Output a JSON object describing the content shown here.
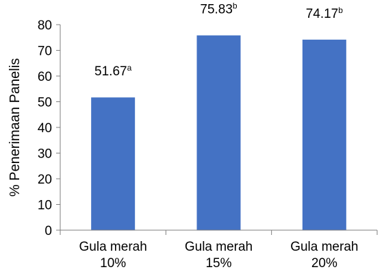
{
  "chart_data": {
    "type": "bar",
    "categories": [
      [
        "Gula merah",
        "10%"
      ],
      [
        "Gula merah",
        "15%"
      ],
      [
        "Gula merah",
        "20%"
      ]
    ],
    "values": [
      51.67,
      75.83,
      74.17
    ],
    "data_labels": [
      {
        "value": "51.67",
        "sup": "a"
      },
      {
        "value": "75.83",
        "sup": "b"
      },
      {
        "value": "74.17",
        "sup": "b"
      }
    ],
    "ylabel": "% Penerimaan Panelis",
    "xlabel": "",
    "ylim": [
      0,
      80
    ],
    "yticks": [
      0,
      10,
      20,
      30,
      40,
      50,
      60,
      70,
      80
    ],
    "bar_color": "#4472C4",
    "grid": false,
    "legend": "none"
  }
}
